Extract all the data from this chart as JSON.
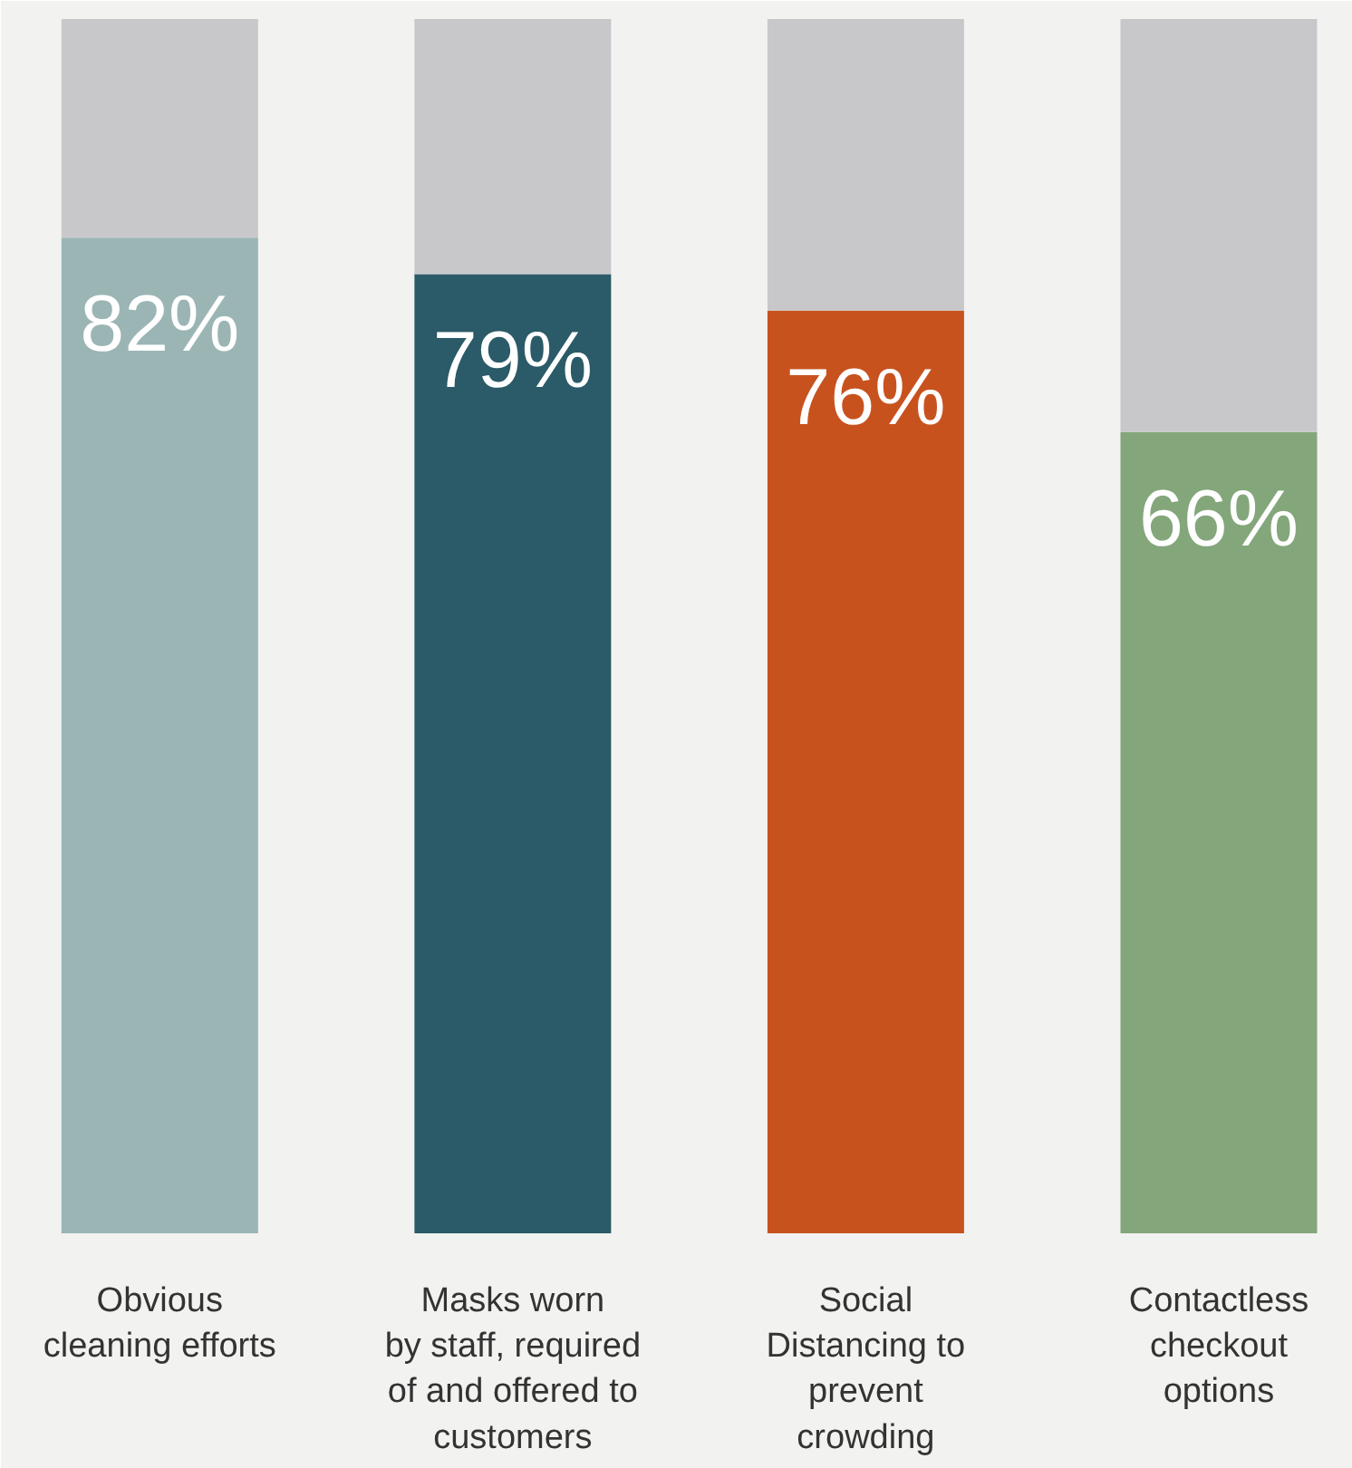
{
  "chart_data": {
    "type": "bar",
    "stacked": true,
    "categories": [
      "Obvious\ncleaning efforts",
      "Masks worn\nby staff, required\nof and offered to\ncustomers",
      "Social\nDistancing to\nprevent\ncrowding",
      "Contactless\ncheckout\noptions"
    ],
    "series": [
      {
        "colors": [
          "#9bb5b5",
          "#2b5a68",
          "#c8521e",
          "#84a67b"
        ],
        "values": [
          82,
          79,
          76,
          66
        ],
        "value_labels": [
          "82%",
          "79%",
          "76%",
          "66%"
        ]
      },
      {
        "color": "#c8c8ca",
        "values": [
          18,
          21,
          24,
          34
        ]
      }
    ],
    "ylim": [
      0,
      100
    ],
    "tick_labels": false,
    "grid": false
  }
}
